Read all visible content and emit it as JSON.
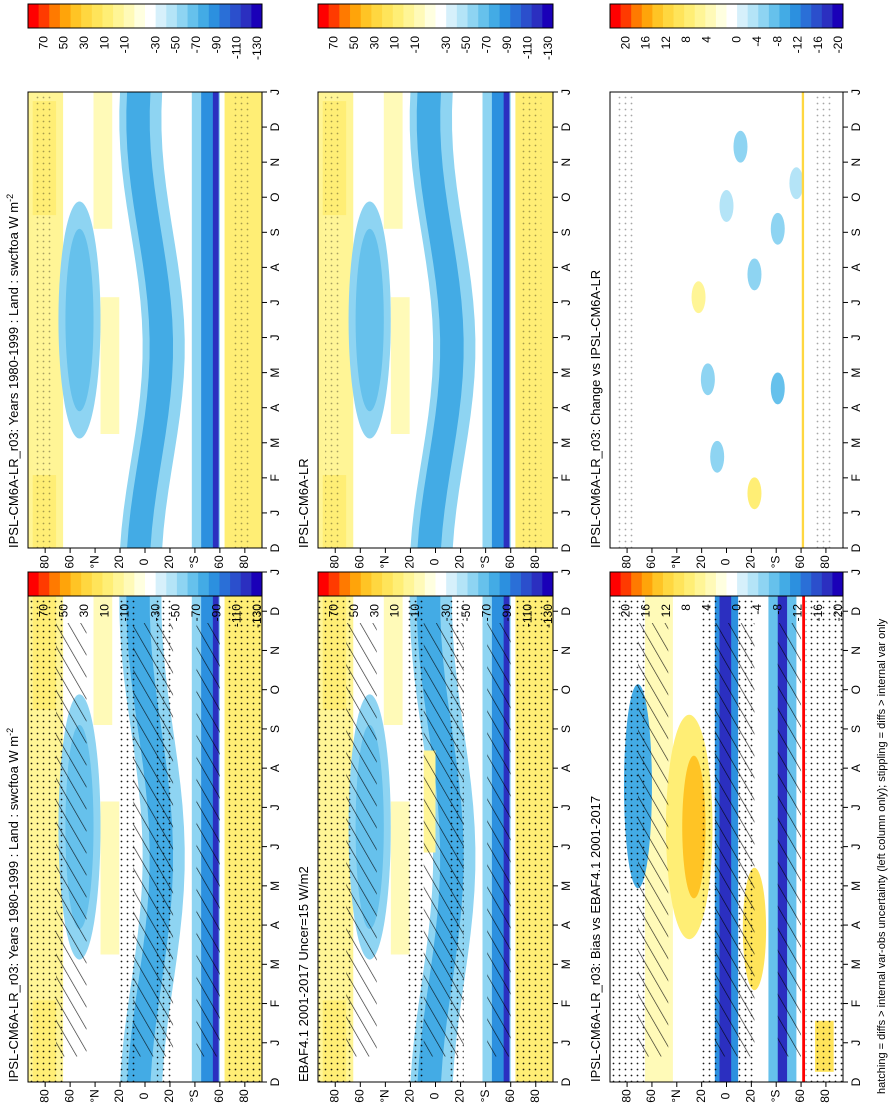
{
  "footnote": "hatching = diffs > internal var-obs uncertainty (left column only); stippling = diffs > internal var only",
  "colors": {
    "warm": [
      "#ff0000",
      "#ff3a00",
      "#ff7a00",
      "#ffa40a",
      "#ffc425",
      "#ffd740",
      "#ffe45a",
      "#ffee75",
      "#fff596",
      "#fffab8",
      "#ffffe0"
    ],
    "white": "#ffffff",
    "cool": [
      "#d6f0fb",
      "#b4e4f7",
      "#8ed4f2",
      "#66c1ec",
      "#43abe5",
      "#2c90df",
      "#2a6fd7",
      "#2b4fcc",
      "#2b2fc0",
      "#1a00b8"
    ]
  },
  "chart_data": [
    {
      "type": "heatmap",
      "title": "IPSL-CM6A-LR_r03: Years 1980-1999 : Land : swcftoa W m",
      "title_superscript": "-2",
      "x_ticks": [
        "D",
        "J",
        "F",
        "M",
        "A",
        "M",
        "J",
        "J",
        "A",
        "S",
        "O",
        "N",
        "D",
        "J"
      ],
      "y_ticks": [
        "80",
        "60",
        "°N",
        "20",
        "0",
        "20",
        "°S",
        "60",
        "80"
      ],
      "colorbar_ticks": [
        "70",
        "50",
        "30",
        "10",
        "-10",
        "-30",
        "-50",
        "-70",
        "-90",
        "-110",
        "-130"
      ],
      "field": "mean",
      "hatching": true,
      "stippling": true
    },
    {
      "type": "heatmap",
      "title": "IPSL-CM6A-LR_r03: Years 1980-1999 : Land : swcftoa W m",
      "title_superscript": "-2",
      "x_ticks": [
        "D",
        "J",
        "F",
        "M",
        "A",
        "M",
        "J",
        "J",
        "A",
        "S",
        "O",
        "N",
        "D",
        "J"
      ],
      "y_ticks": [
        "80",
        "60",
        "°N",
        "20",
        "0",
        "20",
        "°S",
        "60",
        "80"
      ],
      "colorbar_ticks": [
        "70",
        "50",
        "30",
        "10",
        "-10",
        "-30",
        "-50",
        "-70",
        "-90",
        "-110",
        "-130"
      ],
      "field": "mean",
      "hatching": false,
      "stippling": true
    },
    {
      "type": "heatmap",
      "title": "EBAF4.1 2001-2017 Uncer=15 W/m2",
      "title_superscript": "",
      "x_ticks": [
        "D",
        "J",
        "F",
        "M",
        "A",
        "M",
        "J",
        "J",
        "A",
        "S",
        "O",
        "N",
        "D",
        "J"
      ],
      "y_ticks": [
        "80",
        "60",
        "°N",
        "20",
        "0",
        "20",
        "°S",
        "60",
        "80"
      ],
      "colorbar_ticks": [
        "70",
        "50",
        "30",
        "10",
        "-10",
        "-30",
        "-50",
        "-70",
        "-90",
        "-110",
        "-130"
      ],
      "field": "mean",
      "hatching": true,
      "stippling": true
    },
    {
      "type": "heatmap",
      "title": "IPSL-CM6A-LR",
      "title_superscript": "",
      "x_ticks": [
        "D",
        "J",
        "F",
        "M",
        "A",
        "M",
        "J",
        "J",
        "A",
        "S",
        "O",
        "N",
        "D",
        "J"
      ],
      "y_ticks": [
        "80",
        "60",
        "°N",
        "20",
        "0",
        "20",
        "°S",
        "60",
        "80"
      ],
      "colorbar_ticks": [
        "70",
        "50",
        "30",
        "10",
        "-10",
        "-30",
        "-50",
        "-70",
        "-90",
        "-110",
        "-130"
      ],
      "field": "mean",
      "hatching": false,
      "stippling": true
    },
    {
      "type": "heatmap",
      "title": "IPSL-CM6A-LR_r03: Bias vs EBAF4.1 2001-2017",
      "title_superscript": "",
      "x_ticks": [
        "D",
        "J",
        "F",
        "M",
        "A",
        "M",
        "J",
        "J",
        "A",
        "S",
        "O",
        "N",
        "D",
        "J"
      ],
      "y_ticks": [
        "80",
        "60",
        "°N",
        "20",
        "0",
        "20",
        "°S",
        "60",
        "80"
      ],
      "colorbar_ticks": [
        "20",
        "16",
        "12",
        "8",
        "4",
        "0",
        "-4",
        "-8",
        "-12",
        "-16",
        "-20"
      ],
      "field": "bias",
      "hatching": true,
      "stippling": true
    },
    {
      "type": "heatmap",
      "title": "IPSL-CM6A-LR_r03: Change vs IPSL-CM6A-LR",
      "title_superscript": "",
      "x_ticks": [
        "D",
        "J",
        "F",
        "M",
        "A",
        "M",
        "J",
        "J",
        "A",
        "S",
        "O",
        "N",
        "D",
        "J"
      ],
      "y_ticks": [
        "80",
        "60",
        "°N",
        "20",
        "0",
        "20",
        "°S",
        "60",
        "80"
      ],
      "colorbar_ticks": [
        "20",
        "16",
        "12",
        "8",
        "4",
        "0",
        "-4",
        "-8",
        "-12",
        "-16",
        "-20"
      ],
      "field": "change",
      "hatching": false,
      "stippling": true
    }
  ]
}
